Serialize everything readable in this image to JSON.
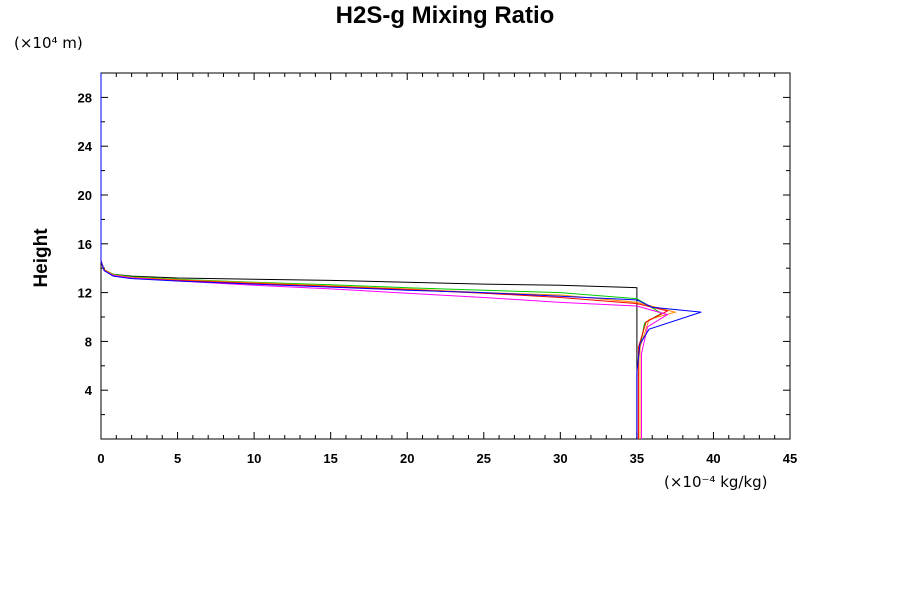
{
  "chart_data": {
    "type": "line",
    "title": "H2S-g Mixing Ratio",
    "ylabel": "Height",
    "y_units": "(×10⁴ m)",
    "x_units": "(×10⁻⁴ kg/kg)",
    "xlim": [
      0,
      45
    ],
    "ylim": [
      0,
      30
    ],
    "x_ticks": [
      0,
      5,
      10,
      15,
      20,
      25,
      30,
      35,
      40,
      45
    ],
    "y_ticks": [
      4,
      8,
      12,
      16,
      20,
      24,
      28
    ],
    "x_tick_labels": [
      "0",
      "5",
      "10",
      "15",
      "20",
      "25",
      "30",
      "35",
      "40",
      "45"
    ],
    "y_tick_labels": [
      "4",
      "8",
      "12",
      "16",
      "20",
      "24",
      "28"
    ],
    "grid": false,
    "series": [
      {
        "color": "#000000",
        "points": [
          [
            35.0,
            0.0
          ],
          [
            35.0,
            7.0
          ],
          [
            35.0,
            10.0
          ],
          [
            35.0,
            12.4
          ],
          [
            30.0,
            12.6
          ],
          [
            25.0,
            12.7
          ],
          [
            20.0,
            12.85
          ],
          [
            15.0,
            13.0
          ],
          [
            10.0,
            13.1
          ],
          [
            5.0,
            13.2
          ],
          [
            2.0,
            13.35
          ],
          [
            0.8,
            13.5
          ],
          [
            0.3,
            13.75
          ],
          [
            0.1,
            14.2
          ],
          [
            0.0,
            14.6
          ],
          [
            0.0,
            30.0
          ]
        ]
      },
      {
        "color": "#00cc00",
        "points": [
          [
            35.2,
            0.0
          ],
          [
            35.2,
            7.5
          ],
          [
            35.5,
            9.5
          ],
          [
            36.6,
            10.3
          ],
          [
            35.0,
            11.5
          ],
          [
            30.0,
            12.0
          ],
          [
            25.0,
            12.2
          ],
          [
            20.0,
            12.4
          ],
          [
            15.0,
            12.65
          ],
          [
            10.0,
            12.85
          ],
          [
            5.0,
            13.1
          ],
          [
            2.0,
            13.3
          ],
          [
            0.8,
            13.5
          ],
          [
            0.2,
            13.9
          ],
          [
            0.0,
            14.6
          ],
          [
            0.0,
            30.0
          ]
        ]
      },
      {
        "color": "#ff8c00",
        "points": [
          [
            35.2,
            0.0
          ],
          [
            35.2,
            7.5
          ],
          [
            35.8,
            9.8
          ],
          [
            37.5,
            10.4
          ],
          [
            35.0,
            11.2
          ],
          [
            30.0,
            11.8
          ],
          [
            25.0,
            12.0
          ],
          [
            20.0,
            12.3
          ],
          [
            15.0,
            12.55
          ],
          [
            10.0,
            12.8
          ],
          [
            5.0,
            13.05
          ],
          [
            2.0,
            13.25
          ],
          [
            0.8,
            13.45
          ],
          [
            0.2,
            13.9
          ],
          [
            0.0,
            14.6
          ],
          [
            0.0,
            30.0
          ]
        ]
      },
      {
        "color": "#ff0000",
        "points": [
          [
            35.1,
            0.0
          ],
          [
            35.1,
            7.5
          ],
          [
            35.6,
            9.6
          ],
          [
            37.0,
            10.5
          ],
          [
            35.0,
            11.1
          ],
          [
            30.0,
            11.6
          ],
          [
            25.0,
            11.95
          ],
          [
            20.0,
            12.25
          ],
          [
            15.0,
            12.5
          ],
          [
            10.0,
            12.75
          ],
          [
            5.0,
            13.0
          ],
          [
            2.0,
            13.2
          ],
          [
            0.8,
            13.4
          ],
          [
            0.2,
            13.85
          ],
          [
            0.0,
            14.6
          ],
          [
            0.0,
            30.0
          ]
        ]
      },
      {
        "color": "#ff00ff",
        "points": [
          [
            35.3,
            0.0
          ],
          [
            35.3,
            7.0
          ],
          [
            35.7,
            9.2
          ],
          [
            37.0,
            10.2
          ],
          [
            35.0,
            10.9
          ],
          [
            30.0,
            11.2
          ],
          [
            25.0,
            11.6
          ],
          [
            20.0,
            11.95
          ],
          [
            15.0,
            12.3
          ],
          [
            10.0,
            12.6
          ],
          [
            5.0,
            12.95
          ],
          [
            2.0,
            13.2
          ],
          [
            0.8,
            13.4
          ],
          [
            0.2,
            13.8
          ],
          [
            0.0,
            14.6
          ],
          [
            0.0,
            30.0
          ]
        ]
      },
      {
        "color": "#0000ff",
        "points": [
          [
            35.0,
            0.0
          ],
          [
            35.0,
            5.5
          ],
          [
            35.2,
            7.8
          ],
          [
            35.8,
            9.0
          ],
          [
            39.2,
            10.4
          ],
          [
            36.0,
            10.8
          ],
          [
            35.0,
            11.4
          ],
          [
            30.0,
            11.7
          ],
          [
            25.0,
            12.0
          ],
          [
            20.0,
            12.2
          ],
          [
            15.0,
            12.45
          ],
          [
            10.0,
            12.7
          ],
          [
            5.0,
            12.95
          ],
          [
            2.0,
            13.15
          ],
          [
            0.8,
            13.35
          ],
          [
            0.2,
            13.8
          ],
          [
            0.0,
            14.6
          ],
          [
            0.0,
            30.0
          ]
        ]
      }
    ]
  }
}
